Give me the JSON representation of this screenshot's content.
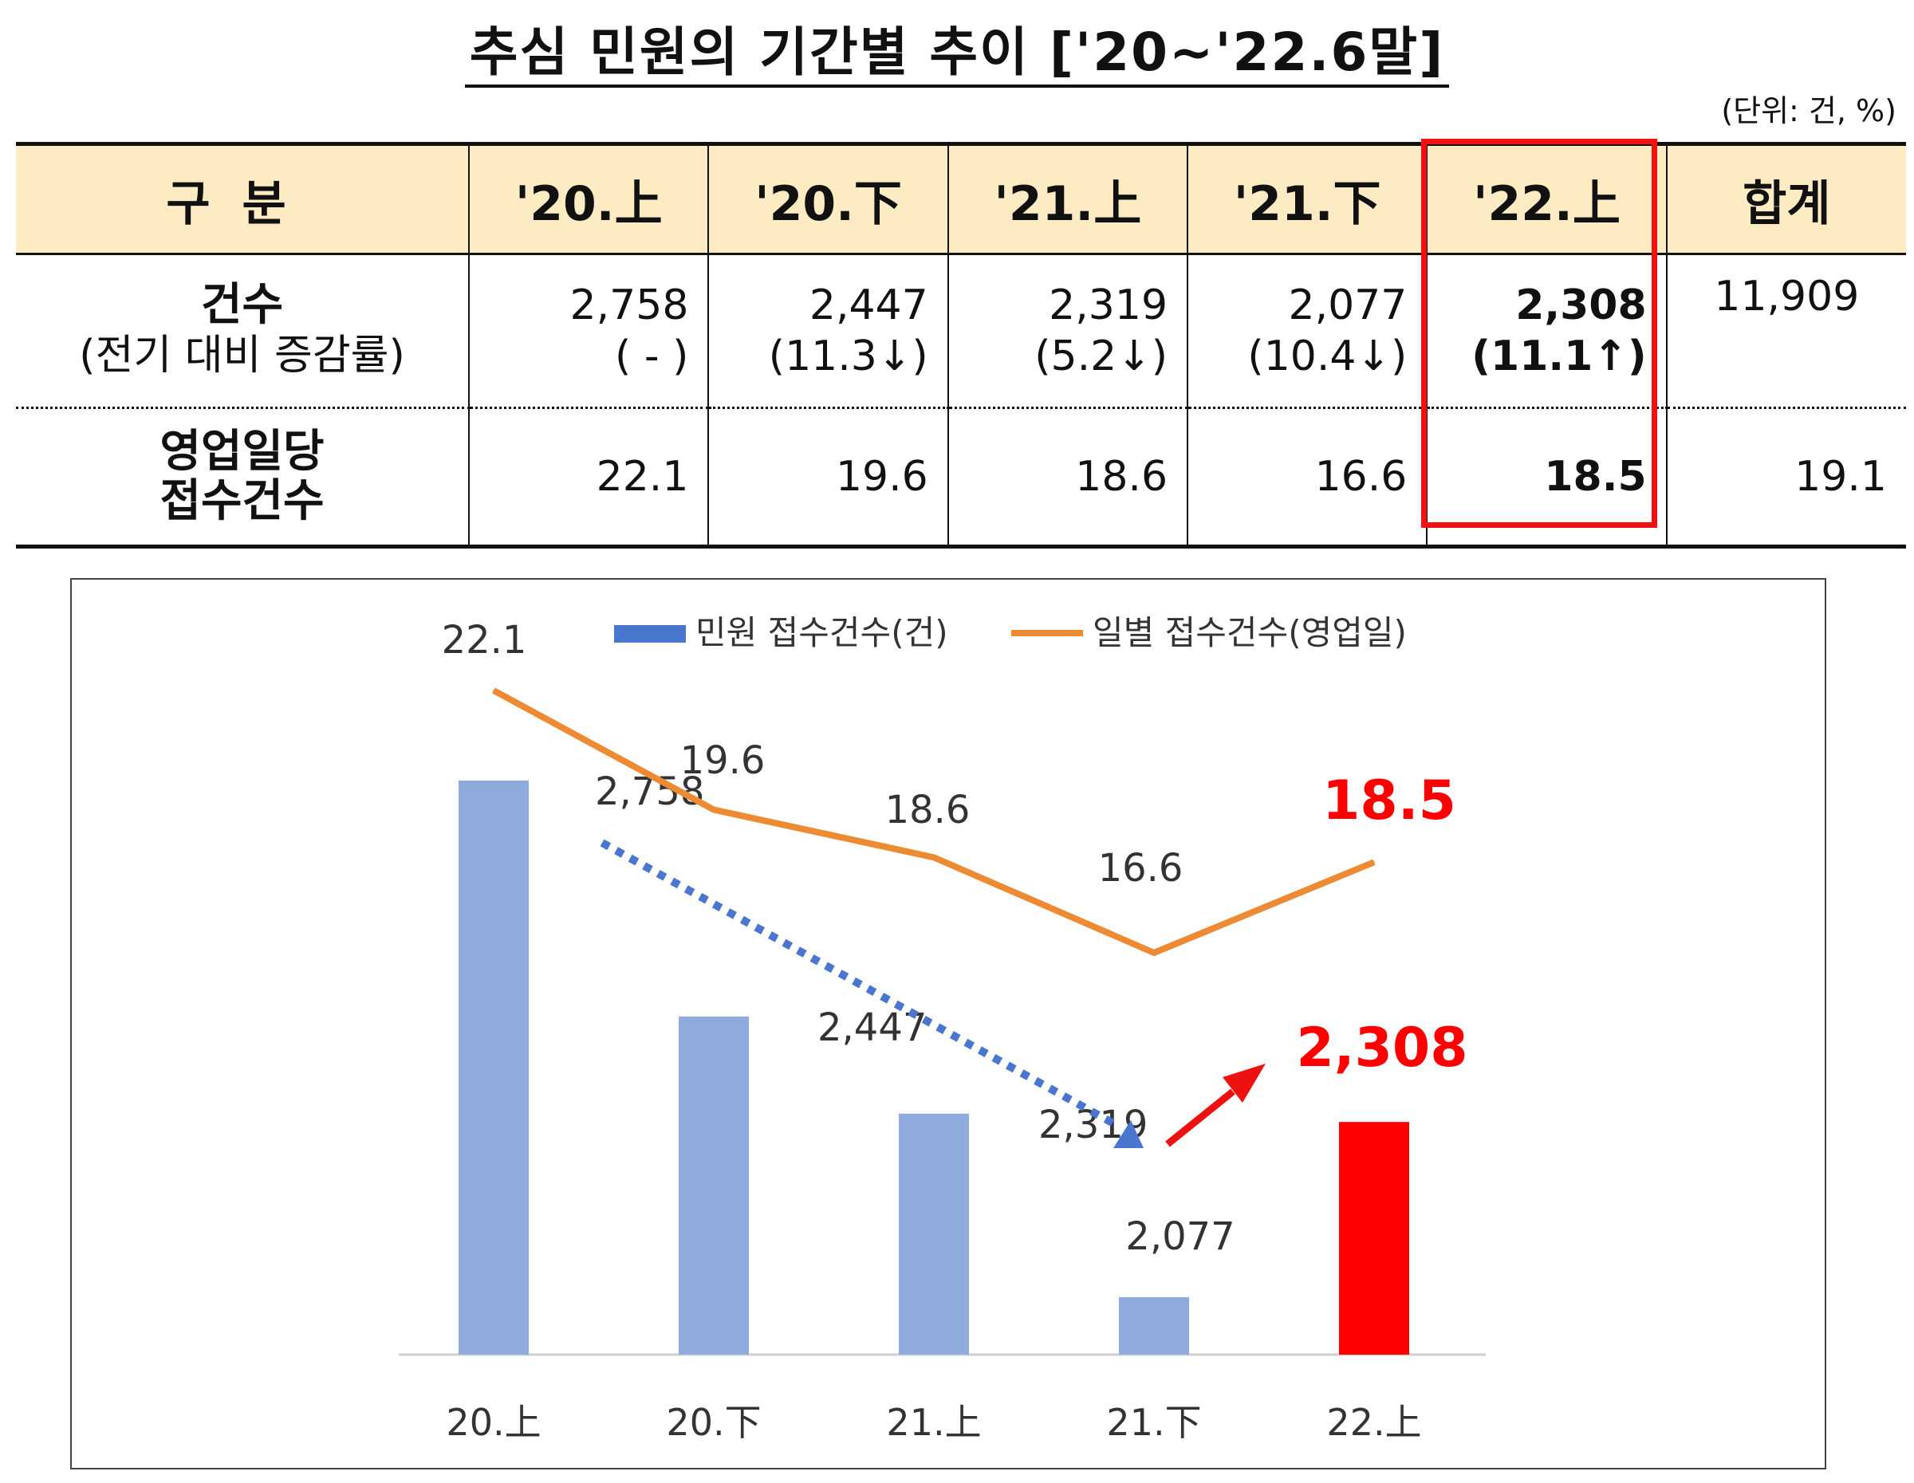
{
  "title": "추심 민원의 기간별 추이 ['20~'22.6말]",
  "unit_note": "(단위: 건, %)",
  "table": {
    "headers": [
      "구분",
      "'20.上",
      "'20.下",
      "'21.上",
      "'21.下",
      "'22.上",
      "합계"
    ],
    "row1": {
      "label": "건수",
      "sublabel": "(전기 대비 증감률)",
      "values": [
        "2,758",
        "2,447",
        "2,319",
        "2,077",
        "2,308"
      ],
      "changes": [
        "( - )",
        "(11.3↓)",
        "(5.2↓)",
        "(10.4↓)",
        "(11.1↑)"
      ],
      "total": "11,909"
    },
    "row2": {
      "label_line1": "영업일당",
      "label_line2": "접수건수",
      "values": [
        "22.1",
        "19.6",
        "18.6",
        "16.6",
        "18.5"
      ],
      "total": "19.1"
    }
  },
  "chart_data": {
    "type": "bar",
    "categories": [
      "20.上",
      "20.下",
      "21.上",
      "21.下",
      "22.上"
    ],
    "series": [
      {
        "name": "민원 접수건수(건)",
        "type": "bar",
        "values": [
          2758,
          2447,
          2319,
          2077,
          2308
        ],
        "labels": [
          "2,758",
          "2,447",
          "2,319",
          "2,077",
          "2,308"
        ],
        "color": "#8faadc"
      },
      {
        "name": "일별 접수건수(영업일)",
        "type": "line",
        "values": [
          22.1,
          19.6,
          18.6,
          16.6,
          18.5
        ],
        "labels": [
          "22.1",
          "19.6",
          "18.6",
          "16.6",
          "18.5"
        ],
        "color": "#ed8b34"
      }
    ],
    "highlight_index": 4,
    "highlight_color": "#ff0000",
    "legend_position": "top",
    "annotations": [
      "dotted blue downward trend arrow from 20.上 to 21.下",
      "red upward arrow to 22.上"
    ]
  }
}
